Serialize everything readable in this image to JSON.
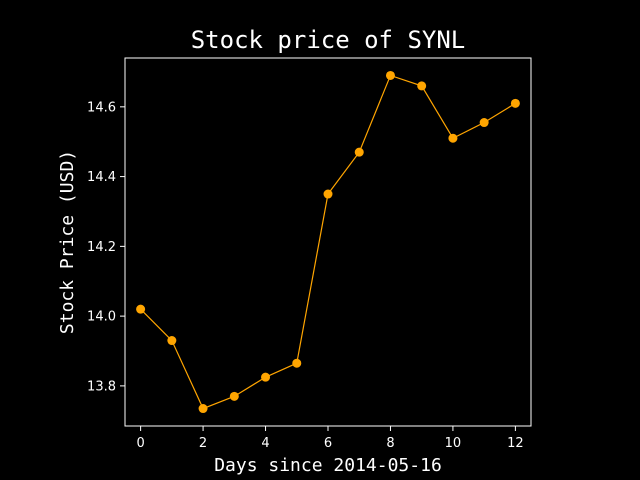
{
  "chart_data": {
    "type": "line",
    "title": "Stock price of SYNL",
    "xlabel": "Days since 2014-05-16",
    "ylabel": "Stock Price (USD)",
    "x": [
      0,
      1,
      2,
      3,
      4,
      5,
      6,
      7,
      8,
      9,
      10,
      11,
      12
    ],
    "series": [
      {
        "values": [
          14.02,
          13.93,
          13.735,
          13.77,
          13.825,
          13.865,
          14.35,
          14.47,
          14.69,
          14.66,
          14.51,
          14.555,
          14.61
        ],
        "color": "#FFA500"
      }
    ],
    "xlim": [
      -0.5,
      12.5
    ],
    "ylim": [
      13.685,
      14.74
    ],
    "xticks": [
      0,
      2,
      4,
      6,
      8,
      10,
      12
    ],
    "yticks": [
      13.8,
      14.0,
      14.2,
      14.4,
      14.6
    ],
    "ytick_labels": [
      "13.8",
      "14.0",
      "14.2",
      "14.4",
      "14.6"
    ],
    "grid": false,
    "legend": "none",
    "background": "#000000",
    "axis_color": "#ffffff"
  }
}
